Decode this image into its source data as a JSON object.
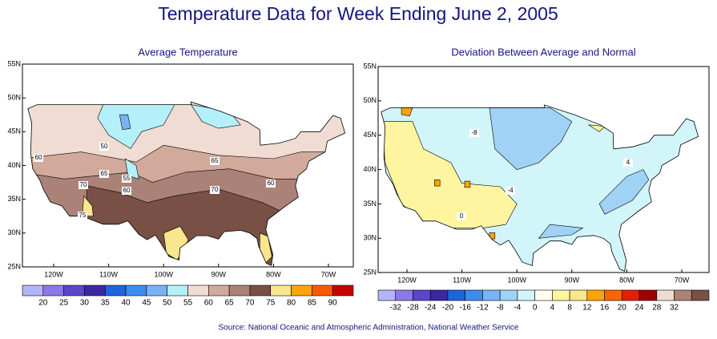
{
  "title": "Temperature Data for Week Ending June 2, 2005",
  "maps": [
    {
      "title": "Average Temperature",
      "lat_labels": [
        "55N",
        "50N",
        "45N",
        "40N",
        "35N",
        "30N",
        "25N"
      ],
      "lon_labels": [
        "120W",
        "110W",
        "100W",
        "90W",
        "80W",
        "70W"
      ],
      "contour_labels": [
        "50",
        "60",
        "65",
        "55",
        "70",
        "60",
        "65",
        "70",
        "60",
        "75"
      ],
      "colorbar_colors": [
        "#b4b4fa",
        "#8c78e6",
        "#5a46c8",
        "#3c28a0",
        "#1e64dc",
        "#3c8cf0",
        "#78b4f5",
        "#b4f0fa",
        "#f0dcd2",
        "#d2aa9b",
        "#aa8278",
        "#785046",
        "#fae68c",
        "#faa50a",
        "#fa5a00",
        "#c80000"
      ],
      "colorbar_labels": [
        "20",
        "25",
        "30",
        "35",
        "40",
        "45",
        "50",
        "55",
        "60",
        "65",
        "70",
        "75",
        "80",
        "85",
        "90"
      ]
    },
    {
      "title": "Deviation Between Average and Normal",
      "lat_labels": [
        "55N",
        "50N",
        "45N",
        "40N",
        "35N",
        "30N",
        "25N"
      ],
      "lon_labels": [
        "120W",
        "110W",
        "100W",
        "90W",
        "80W",
        "70W"
      ],
      "contour_labels": [
        "-8",
        "0",
        "-4",
        "4"
      ],
      "colorbar_colors": [
        "#b4b4fa",
        "#8c78e6",
        "#5a46c8",
        "#3c28a0",
        "#1e64dc",
        "#3c8cf0",
        "#78b4f5",
        "#a0d2f5",
        "#d2f5fa",
        "#fffff0",
        "#fff5a0",
        "#fae68c",
        "#faa50a",
        "#fa6400",
        "#e61e00",
        "#a00000",
        "#f0dcd2",
        "#aa8278",
        "#785046"
      ],
      "colorbar_labels": [
        "-32",
        "-28",
        "-24",
        "-20",
        "-16",
        "-12",
        "-8",
        "-4",
        "0",
        "4",
        "8",
        "12",
        "16",
        "20",
        "24",
        "28",
        "32"
      ]
    }
  ],
  "source": "Source:  National Oceanic and Atmospheric Administration, National Weather Service"
}
